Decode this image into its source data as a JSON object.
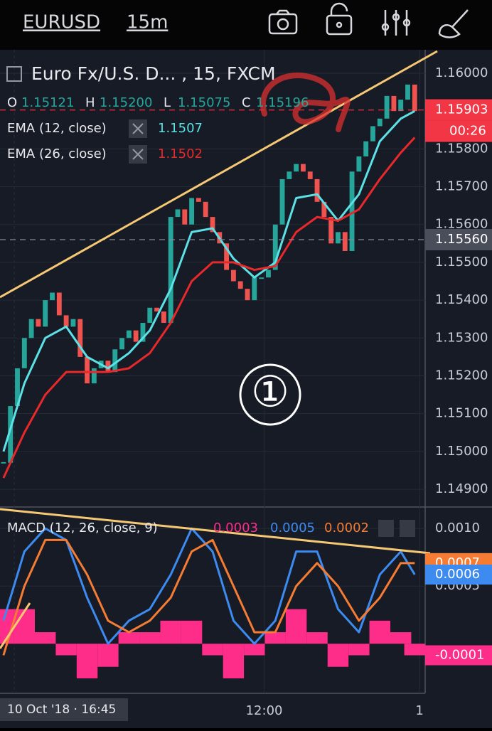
{
  "top_bar": {
    "symbol": "EURUSD",
    "interval": "15m"
  },
  "chart_data": [
    {
      "type": "candlestick",
      "title": "Euro Fx/U.S. D... , 15, FXCM",
      "ohlc": [
        {
          "name": "O",
          "value": 1.15121
        },
        {
          "name": "H",
          "value": {
            "value": 1.152,
            "label": "1.15200"
          }
        },
        {
          "name": "L",
          "value": 1.15075
        },
        {
          "name": "C",
          "value": 1.15196
        }
      ],
      "up_color": "#26a69a",
      "down_color": "#ef5350",
      "close": [
        1.1497,
        1.1512,
        1.1522,
        1.153,
        1.1535,
        1.1533,
        1.154,
        1.1542,
        1.1536,
        1.1533,
        1.1535,
        1.1525,
        1.1518,
        1.1522,
        1.1524,
        1.1521,
        1.1527,
        1.153,
        1.1532,
        1.1529,
        1.1534,
        1.1538,
        1.1537,
        1.1534,
        1.1562,
        1.1564,
        1.156,
        1.1567,
        1.1566,
        1.1562,
        1.1558,
        1.1555,
        1.1548,
        1.1545,
        1.1543,
        1.154,
        1.1546,
        1.1546,
        1.1548,
        1.156,
        1.1572,
        1.1574,
        1.1576,
        1.1574,
        1.1572,
        1.1566,
        1.1562,
        1.1555,
        1.1558,
        1.1553,
        1.1574,
        1.1578,
        1.1582,
        1.1586,
        1.1588,
        1.1594,
        1.159,
        1.1593,
        1.1597,
        1.159
      ],
      "series": [
        {
          "name": "EMA (12, close)",
          "color": "#5ce1e6",
          "legend_value": 1.1507,
          "x": [
            0,
            3,
            6,
            9,
            12,
            15,
            18,
            21,
            24,
            27,
            30,
            33,
            36,
            39,
            42,
            45,
            48,
            51,
            54,
            57,
            59
          ],
          "values": [
            1.15,
            1.1518,
            1.153,
            1.1533,
            1.1525,
            1.1522,
            1.1526,
            1.1532,
            1.1543,
            1.1558,
            1.1559,
            1.1551,
            1.1546,
            1.155,
            1.1567,
            1.1568,
            1.1561,
            1.1568,
            1.1582,
            1.1588,
            1.159
          ]
        },
        {
          "name": "EMA (26, close)",
          "color": "#e8282b",
          "legend_value": 1.1502,
          "x": [
            0,
            3,
            6,
            9,
            12,
            15,
            18,
            21,
            24,
            27,
            30,
            33,
            36,
            39,
            42,
            45,
            48,
            51,
            54,
            57,
            59
          ],
          "values": [
            1.1493,
            1.1505,
            1.1515,
            1.1521,
            1.1521,
            1.1521,
            1.1522,
            1.1526,
            1.1534,
            1.1545,
            1.155,
            1.155,
            1.1548,
            1.1549,
            1.1558,
            1.1562,
            1.1561,
            1.1564,
            1.1572,
            1.1579,
            1.1583
          ]
        }
      ],
      "price_labels": [
        {
          "value": 1.15903,
          "label": "1.15903",
          "color": "#f23645"
        },
        {
          "value": 1.1556,
          "label": "1.15560",
          "color": "#4a4e5a"
        }
      ],
      "countdown": "00:26",
      "annotation": "①",
      "xlim": [
        -0.5,
        60.5
      ],
      "ylim": [
        1.14855,
        1.16062
      ],
      "yticks": [
        {
          "value": 1.149,
          "label": "1.14900"
        },
        {
          "value": 1.15,
          "label": "1.15000"
        },
        {
          "value": 1.151,
          "label": "1.15100"
        },
        {
          "value": 1.152,
          "label": "1.15200"
        },
        {
          "value": 1.153,
          "label": "1.15300"
        },
        {
          "value": 1.154,
          "label": "1.15400"
        },
        {
          "value": 1.155,
          "label": "1.15500"
        },
        {
          "value": 1.156,
          "label": "1.15600"
        },
        {
          "value": 1.157,
          "label": "1.15700"
        },
        {
          "value": 1.158,
          "label": "1.15800"
        },
        {
          "value": 1.16,
          "label": "1.16000"
        }
      ],
      "grid": true
    },
    {
      "type": "macd",
      "title": "MACD (12, 26, close, 9)",
      "histogram": {
        "color": "#ff2d8a",
        "legend_value": 0.0003,
        "axis_label": -0.0001,
        "x": [
          0,
          3,
          6,
          9,
          12,
          15,
          18,
          21,
          24,
          27,
          30,
          33,
          36,
          39,
          42,
          45,
          48,
          51,
          54,
          57,
          59
        ],
        "values": [
          0.0003,
          0.0003,
          0.0001,
          -0.0001,
          -0.0003,
          -0.0002,
          0.0001,
          0.0001,
          0.0002,
          0.0002,
          -0.0001,
          -0.0003,
          -0.0001,
          0.0001,
          0.0003,
          0.0001,
          -0.0002,
          -0.0001,
          0.0002,
          0.0001,
          -0.0001
        ]
      },
      "series": [
        {
          "color": "#3d8bf0",
          "legend_value": 0.0005,
          "axis_label": 0.0006,
          "x": [
            0,
            3,
            6,
            9,
            12,
            15,
            18,
            21,
            24,
            27,
            30,
            33,
            36,
            39,
            42,
            45,
            48,
            51,
            54,
            57,
            59
          ],
          "values": [
            0.0002,
            0.0008,
            0.001,
            0.0009,
            0.0004,
            0,
            0.0002,
            0.0003,
            0.0006,
            0.001,
            0.0008,
            0.0002,
            0,
            0.0002,
            0.0008,
            0.0008,
            0.0003,
            0.0001,
            0.0006,
            0.0008,
            0.0006
          ]
        },
        {
          "color": "#f57c32",
          "legend_value": 0.0002,
          "axis_label": 0.0007,
          "x": [
            0,
            3,
            6,
            9,
            12,
            15,
            18,
            21,
            24,
            27,
            30,
            33,
            36,
            39,
            42,
            45,
            48,
            51,
            54,
            57,
            59
          ],
          "values": [
            -0.0001,
            0.0005,
            0.0009,
            0.0009,
            0.0006,
            0.0002,
            0.0001,
            0.0002,
            0.0004,
            0.0008,
            0.0009,
            0.0005,
            0.0001,
            0.0001,
            0.0005,
            0.0007,
            0.0005,
            0.0002,
            0.0004,
            0.0007,
            0.0007
          ]
        }
      ],
      "xlim": [
        -0.5,
        60.5
      ],
      "ylim": [
        -0.00043,
        0.00118
      ],
      "yticks": [
        {
          "value": 0.001,
          "label": "0.0010"
        },
        0.0005
      ],
      "xticks": [
        {
          "value": 37.4,
          "label": "12:00"
        },
        {
          "value": 59.7,
          "label": "1"
        }
      ],
      "cursor_label": "10 Oct '18 · 16:45",
      "grid": true
    }
  ]
}
